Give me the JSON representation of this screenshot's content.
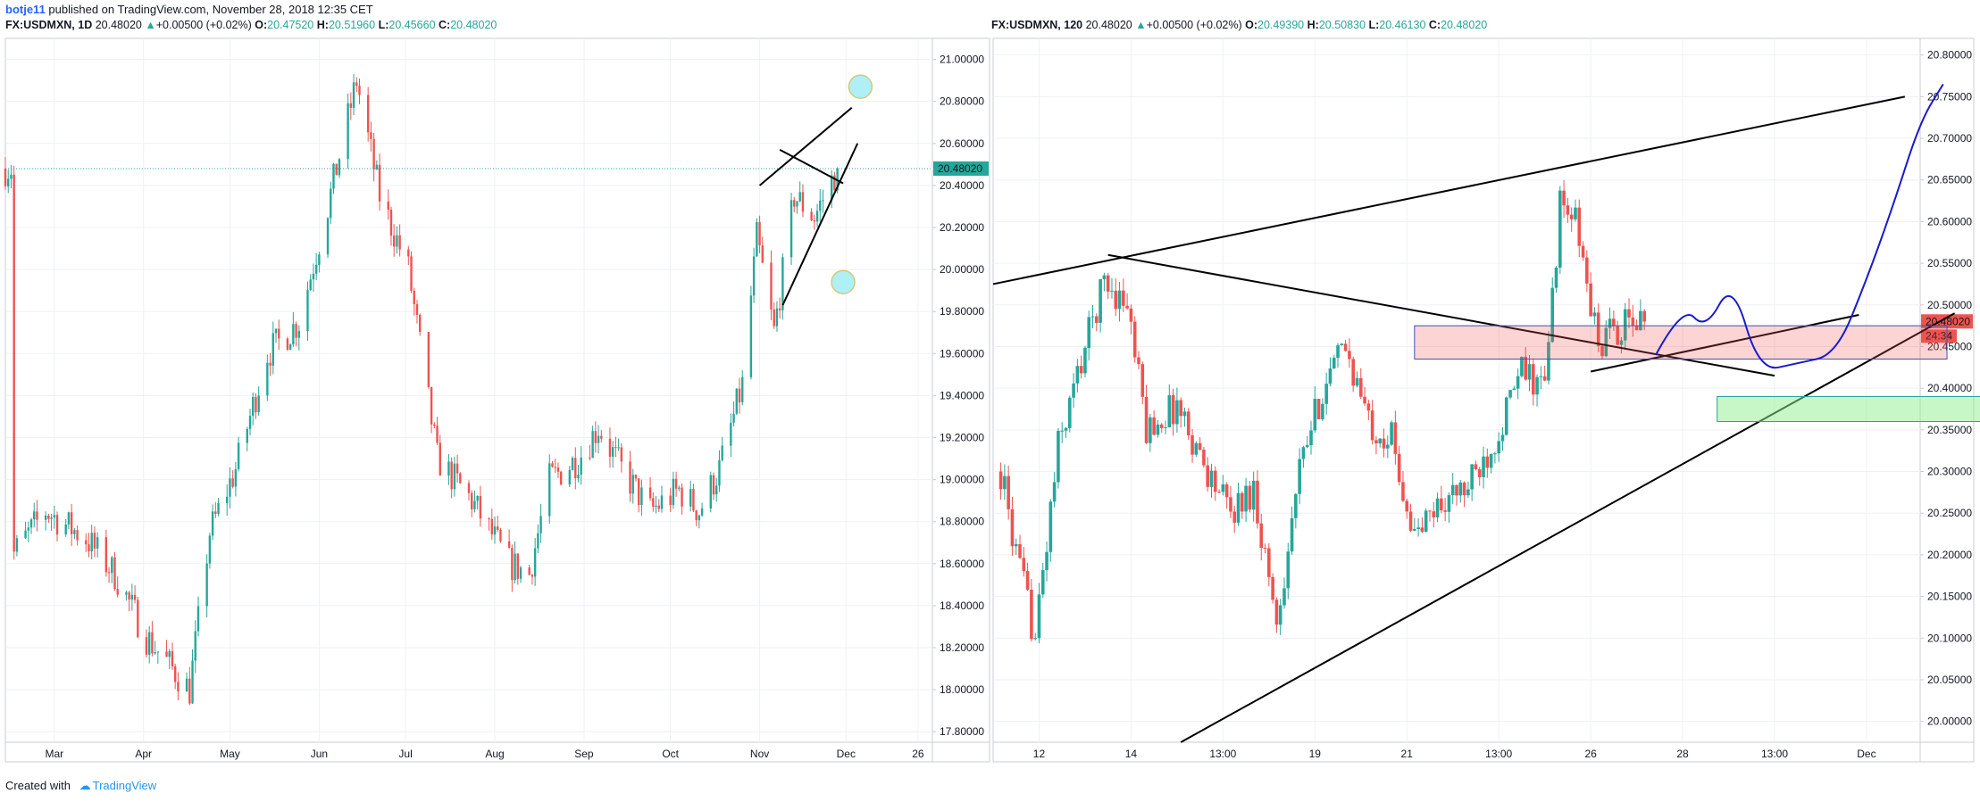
{
  "header": {
    "user": "botje11",
    "text": " published on TradingView.com, November 28, 2018 12:35 CET"
  },
  "footer": {
    "created": "Created with",
    "brand": "TradingView"
  },
  "colors": {
    "up": "#26a69a",
    "down": "#ef5350",
    "line": "#000000",
    "curve": "#1a1acd",
    "grid": "#eef1f5"
  },
  "chart_data": [
    {
      "type": "candlestick",
      "legend": {
        "symbol": "FX:USDMXN, 1D",
        "last": "20.48020",
        "change": "+0.00500 (+0.02%)",
        "open_label": "O:",
        "open": "20.47520",
        "high_label": "H:",
        "high": "20.51960",
        "low_label": "L:",
        "low": "20.45660",
        "close_label": "C:",
        "close": "20.48020"
      },
      "price_label": "20.48020",
      "y_ticks": [
        "21.00000",
        "20.80000",
        "20.60000",
        "20.40000",
        "20.20000",
        "20.00000",
        "19.80000",
        "19.60000",
        "19.40000",
        "19.20000",
        "19.00000",
        "18.80000",
        "18.60000",
        "18.40000",
        "18.20000",
        "18.00000",
        "17.80000"
      ],
      "ylim": [
        17.75,
        21.1
      ],
      "x_ticks": [
        "Mar",
        "Apr",
        "May",
        "Jun",
        "Jul",
        "Aug",
        "Sep",
        "Oct",
        "Nov",
        "Dec",
        "26"
      ],
      "trend": [
        {
          "date": "2018-02-15",
          "close": 18.65
        },
        {
          "date": "2018-02-26",
          "close": 18.85
        },
        {
          "date": "2018-03-12",
          "close": 18.72
        },
        {
          "date": "2018-03-22",
          "close": 18.55
        },
        {
          "date": "2018-04-02",
          "close": 18.25
        },
        {
          "date": "2018-04-11",
          "close": 18.1
        },
        {
          "date": "2018-04-17",
          "close": 18.0
        },
        {
          "date": "2018-04-24",
          "close": 18.75
        },
        {
          "date": "2018-05-03",
          "close": 19.05
        },
        {
          "date": "2018-05-14",
          "close": 19.6
        },
        {
          "date": "2018-05-25",
          "close": 19.75
        },
        {
          "date": "2018-06-04",
          "close": 20.3
        },
        {
          "date": "2018-06-14",
          "close": 20.9
        },
        {
          "date": "2018-06-22",
          "close": 20.35
        },
        {
          "date": "2018-07-02",
          "close": 20.0
        },
        {
          "date": "2018-07-12",
          "close": 19.1
        },
        {
          "date": "2018-07-24",
          "close": 18.9
        },
        {
          "date": "2018-08-06",
          "close": 18.6
        },
        {
          "date": "2018-08-13",
          "close": 18.55
        },
        {
          "date": "2018-08-20",
          "close": 19.0
        },
        {
          "date": "2018-08-30",
          "close": 19.1
        },
        {
          "date": "2018-09-06",
          "close": 19.25
        },
        {
          "date": "2018-09-14",
          "close": 19.05
        },
        {
          "date": "2018-09-24",
          "close": 18.85
        },
        {
          "date": "2018-10-04",
          "close": 18.95
        },
        {
          "date": "2018-10-11",
          "close": 18.85
        },
        {
          "date": "2018-10-18",
          "close": 19.05
        },
        {
          "date": "2018-10-26",
          "close": 19.45
        },
        {
          "date": "2018-10-31",
          "close": 20.15
        },
        {
          "date": "2018-11-06",
          "close": 19.7
        },
        {
          "date": "2018-11-13",
          "close": 20.35
        },
        {
          "date": "2018-11-20",
          "close": 20.25
        },
        {
          "date": "2018-11-28",
          "close": 20.48
        }
      ],
      "date_range": [
        "2018-02-12",
        "2018-12-31"
      ],
      "drawings": [
        {
          "kind": "line",
          "points": [
            [
              "2018-11-01",
              20.4
            ],
            [
              "2018-12-03",
              20.77
            ]
          ]
        },
        {
          "kind": "line",
          "points": [
            [
              "2018-11-08",
              20.57
            ],
            [
              "2018-11-30",
              20.41
            ]
          ]
        },
        {
          "kind": "line",
          "points": [
            [
              "2018-11-09",
              19.83
            ],
            [
              "2018-12-05",
              20.6
            ]
          ]
        },
        {
          "kind": "circle",
          "at": [
            "2018-12-06",
            20.87
          ],
          "fill": "#aef0f6"
        },
        {
          "kind": "circle",
          "at": [
            "2018-11-30",
            19.94
          ],
          "fill": "#aef0f6"
        }
      ]
    },
    {
      "type": "candlestick",
      "legend": {
        "symbol": "FX:USDMXN, 120",
        "last": "20.48020",
        "change": "+0.00500 (+0.02%)",
        "open_label": "O:",
        "open": "20.49390",
        "high_label": "H:",
        "high": "20.50830",
        "low_label": "L:",
        "low": "20.46130",
        "close_label": "C:",
        "close": "20.48020"
      },
      "price_label": "20.48020",
      "countdown": "24:34",
      "y_ticks": [
        "20.80000",
        "20.75000",
        "20.70000",
        "20.65000",
        "20.60000",
        "20.55000",
        "20.50000",
        "20.45000",
        "20.40000",
        "20.35000",
        "20.30000",
        "20.25000",
        "20.20000",
        "20.15000",
        "20.10000",
        "20.05000",
        "20.00000"
      ],
      "ylim": [
        19.975,
        20.82
      ],
      "x_ticks": [
        "12",
        "14",
        "13:00",
        "19",
        "21",
        "13:00",
        "26",
        "28",
        "13:00",
        "Dec"
      ],
      "trend": [
        {
          "t": 0,
          "close": 20.3
        },
        {
          "t": 4,
          "close": 20.2
        },
        {
          "t": 9,
          "close": 20.1
        },
        {
          "t": 15,
          "close": 20.33
        },
        {
          "t": 22,
          "close": 20.45
        },
        {
          "t": 27,
          "close": 20.53
        },
        {
          "t": 33,
          "close": 20.5
        },
        {
          "t": 38,
          "close": 20.35
        },
        {
          "t": 46,
          "close": 20.38
        },
        {
          "t": 54,
          "close": 20.3
        },
        {
          "t": 60,
          "close": 20.25
        },
        {
          "t": 66,
          "close": 20.28
        },
        {
          "t": 72,
          "close": 20.12
        },
        {
          "t": 78,
          "close": 20.3
        },
        {
          "t": 84,
          "close": 20.4
        },
        {
          "t": 90,
          "close": 20.45
        },
        {
          "t": 96,
          "close": 20.36
        },
        {
          "t": 102,
          "close": 20.34
        },
        {
          "t": 108,
          "close": 20.22
        },
        {
          "t": 114,
          "close": 20.26
        },
        {
          "t": 122,
          "close": 20.28
        },
        {
          "t": 130,
          "close": 20.35
        },
        {
          "t": 136,
          "close": 20.42
        },
        {
          "t": 142,
          "close": 20.4
        },
        {
          "t": 146,
          "close": 20.62
        },
        {
          "t": 150,
          "close": 20.6
        },
        {
          "t": 156,
          "close": 20.45
        },
        {
          "t": 160,
          "close": 20.47
        },
        {
          "t": 168,
          "close": 20.48
        }
      ],
      "t_range": [
        -2,
        240
      ],
      "drawings": [
        {
          "kind": "line",
          "points": [
            [
              -2,
              20.525
            ],
            [
              236,
              20.75
            ]
          ]
        },
        {
          "kind": "line",
          "points": [
            [
              28,
              20.56
            ],
            [
              202,
              20.415
            ]
          ]
        },
        {
          "kind": "line",
          "points": [
            [
              47,
              19.975
            ],
            [
              249,
              20.49
            ]
          ]
        },
        {
          "kind": "line",
          "points": [
            [
              154,
              20.42
            ],
            [
              224,
              20.488
            ]
          ]
        },
        {
          "kind": "rect",
          "from": [
            108,
            20.475
          ],
          "to": [
            247,
            20.435
          ],
          "fill": "rgba(239,83,80,0.25)",
          "stroke": "#3f51b5"
        },
        {
          "kind": "rect",
          "from": [
            187,
            20.39
          ],
          "to": [
            266,
            20.36
          ],
          "fill": "rgba(144,238,144,0.5)",
          "stroke": "#26a69a"
        },
        {
          "kind": "curve",
          "points": [
            [
              171,
              20.44
            ],
            [
              178,
              20.5
            ],
            [
              184,
              20.47
            ],
            [
              191,
              20.53
            ],
            [
              198,
              20.42
            ],
            [
              208,
              20.43
            ],
            [
              218,
              20.44
            ],
            [
              226,
              20.53
            ],
            [
              233,
              20.62
            ],
            [
              240,
              20.72
            ],
            [
              246,
              20.765
            ]
          ]
        }
      ]
    }
  ]
}
